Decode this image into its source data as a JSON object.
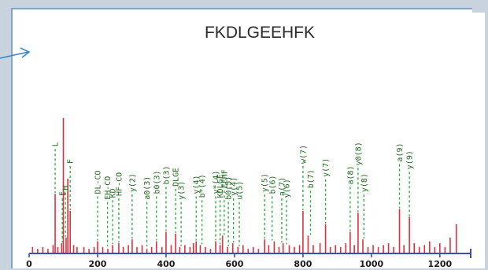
{
  "chart_data": {
    "type": "bar",
    "title": "FKDLGEEHFK",
    "xlim": [
      0,
      1290
    ],
    "ylim": [
      0,
      100
    ],
    "x_ticks": [
      "0",
      "200",
      "400",
      "600",
      "800",
      "1000",
      "1200"
    ],
    "x_tick_values": [
      0,
      200,
      400,
      600,
      800,
      1000,
      1200
    ],
    "colors": {
      "peak": "#e0303e",
      "annotation_line": "#22aa33",
      "annotation_text": "#1f6b1f",
      "axis": "#3a4db0",
      "panel_border": "#7ea4cc"
    },
    "peaks": [
      [
        10,
        3
      ],
      [
        25,
        2
      ],
      [
        40,
        3
      ],
      [
        55,
        2
      ],
      [
        70,
        4
      ],
      [
        76,
        31
      ],
      [
        84,
        3
      ],
      [
        95,
        5
      ],
      [
        100,
        71
      ],
      [
        108,
        8
      ],
      [
        113,
        39
      ],
      [
        120,
        22
      ],
      [
        130,
        4
      ],
      [
        140,
        3
      ],
      [
        160,
        3
      ],
      [
        175,
        2
      ],
      [
        190,
        3
      ],
      [
        200,
        6
      ],
      [
        215,
        3
      ],
      [
        230,
        2
      ],
      [
        244,
        4
      ],
      [
        262,
        5
      ],
      [
        275,
        3
      ],
      [
        290,
        4
      ],
      [
        301,
        7
      ],
      [
        315,
        3
      ],
      [
        330,
        4
      ],
      [
        344,
        2
      ],
      [
        358,
        3
      ],
      [
        372,
        6
      ],
      [
        388,
        3
      ],
      [
        400,
        11
      ],
      [
        415,
        4
      ],
      [
        428,
        10
      ],
      [
        440,
        3
      ],
      [
        455,
        4
      ],
      [
        470,
        3
      ],
      [
        480,
        5
      ],
      [
        488,
        6
      ],
      [
        500,
        4
      ],
      [
        515,
        3
      ],
      [
        530,
        2
      ],
      [
        545,
        6
      ],
      [
        558,
        4
      ],
      [
        565,
        9
      ],
      [
        580,
        3
      ],
      [
        595,
        5
      ],
      [
        610,
        3
      ],
      [
        625,
        4
      ],
      [
        640,
        2
      ],
      [
        655,
        3
      ],
      [
        670,
        2
      ],
      [
        688,
        7
      ],
      [
        700,
        4
      ],
      [
        716,
        6
      ],
      [
        730,
        3
      ],
      [
        742,
        5
      ],
      [
        760,
        4
      ],
      [
        775,
        3
      ],
      [
        790,
        4
      ],
      [
        800,
        22
      ],
      [
        815,
        9
      ],
      [
        830,
        4
      ],
      [
        850,
        5
      ],
      [
        866,
        15
      ],
      [
        880,
        3
      ],
      [
        895,
        4
      ],
      [
        910,
        3
      ],
      [
        925,
        5
      ],
      [
        938,
        11
      ],
      [
        950,
        4
      ],
      [
        961,
        21
      ],
      [
        975,
        7
      ],
      [
        990,
        3
      ],
      [
        1005,
        4
      ],
      [
        1020,
        3
      ],
      [
        1035,
        4
      ],
      [
        1050,
        5
      ],
      [
        1065,
        3
      ],
      [
        1082,
        23
      ],
      [
        1095,
        4
      ],
      [
        1111,
        19
      ],
      [
        1125,
        5
      ],
      [
        1140,
        3
      ],
      [
        1155,
        4
      ],
      [
        1170,
        6
      ],
      [
        1185,
        3
      ],
      [
        1200,
        5
      ],
      [
        1215,
        3
      ],
      [
        1230,
        8
      ],
      [
        1248,
        15
      ]
    ],
    "annotations": [
      {
        "label": "L",
        "x": 76
      },
      {
        "label": "E",
        "x": 97
      },
      {
        "label": "H",
        "x": 106
      },
      {
        "label": "F",
        "x": 120
      },
      {
        "label": "DL-CO",
        "x": 200
      },
      {
        "label": "EH-CO",
        "x": 229
      },
      {
        "label": "KD",
        "x": 244
      },
      {
        "label": "HF-CO",
        "x": 262
      },
      {
        "label": "y(2)",
        "x": 301
      },
      {
        "label": "a0(3)",
        "x": 344
      },
      {
        "label": "b0(3)",
        "x": 372
      },
      {
        "label": "b(3)",
        "x": 400
      },
      {
        "label": "DLGE",
        "x": 428
      },
      {
        "label": "y(3)",
        "x": 444
      },
      {
        "label": "y(4)",
        "x": 488
      },
      {
        "label": "b*(4)",
        "x": 505
      },
      {
        "label": "y*(4)",
        "x": 545
      },
      {
        "label": "KDLGE",
        "x": 558
      },
      {
        "label": "EEHF",
        "x": 570
      },
      {
        "label": "b0(5)",
        "x": 582
      },
      {
        "label": "y(4)",
        "x": 597
      },
      {
        "label": "u(5)",
        "x": 614
      },
      {
        "label": "y(5)",
        "x": 688
      },
      {
        "label": "b(6)",
        "x": 710
      },
      {
        "label": "a(7)",
        "x": 738
      },
      {
        "label": "y(6)",
        "x": 752
      },
      {
        "label": "w(7)",
        "x": 800
      },
      {
        "label": "b(7)",
        "x": 822
      },
      {
        "label": "y(7)",
        "x": 866
      },
      {
        "label": "a(8)",
        "x": 938
      },
      {
        "label": "y0(8)",
        "x": 961
      },
      {
        "label": "y(8)",
        "x": 978
      },
      {
        "label": "a(9)",
        "x": 1082
      },
      {
        "label": "y(9)",
        "x": 1111
      }
    ]
  }
}
